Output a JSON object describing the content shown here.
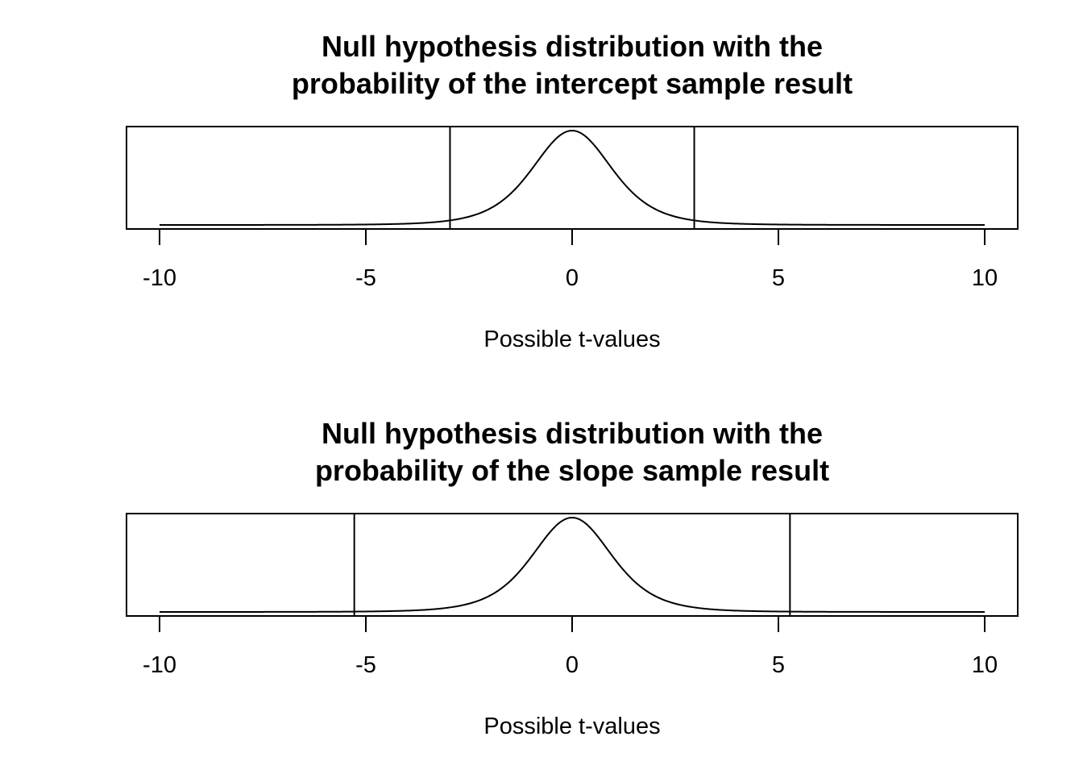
{
  "chart_data": [
    {
      "type": "line",
      "title_line1": "Null hypothesis distribution with the",
      "title_line2": "probability of the intercept sample result",
      "xlabel": "Possible t-values",
      "ylabel": "",
      "xlim": [
        -10,
        10
      ],
      "xticks": [
        -10,
        -5,
        0,
        5,
        10
      ],
      "xtick_labels": [
        "-10",
        "-5",
        "0",
        "5",
        "10"
      ],
      "y_axis_shown": false,
      "grid": false,
      "curve": "t-distribution density (df≈5)",
      "series": [
        {
          "x": [
            -10,
            -8,
            -6,
            -4,
            -3,
            -2.5,
            -2,
            -1.5,
            -1,
            -0.5,
            0,
            0.5,
            1,
            1.5,
            2,
            2.5,
            3,
            4,
            6,
            8,
            10
          ],
          "y": [
            0.0004,
            0.0009,
            0.0018,
            0.0051,
            0.0173,
            0.0302,
            0.0651,
            0.1245,
            0.2197,
            0.3279,
            0.3796,
            0.3279,
            0.2197,
            0.1245,
            0.0651,
            0.0302,
            0.0173,
            0.0051,
            0.0018,
            0.0009,
            0.0004
          ]
        }
      ],
      "vertical_lines": [
        -2.96,
        2.96
      ]
    },
    {
      "type": "line",
      "title_line1": "Null hypothesis distribution with the",
      "title_line2": "probability of the slope sample result",
      "xlabel": "Possible t-values",
      "ylabel": "",
      "xlim": [
        -10,
        10
      ],
      "xticks": [
        -10,
        -5,
        0,
        5,
        10
      ],
      "xtick_labels": [
        "-10",
        "-5",
        "0",
        "5",
        "10"
      ],
      "y_axis_shown": false,
      "grid": false,
      "curve": "t-distribution density (df≈5)",
      "series": [
        {
          "x": [
            -10,
            -8,
            -6,
            -4,
            -3,
            -2.5,
            -2,
            -1.5,
            -1,
            -0.5,
            0,
            0.5,
            1,
            1.5,
            2,
            2.5,
            3,
            4,
            6,
            8,
            10
          ],
          "y": [
            0.0004,
            0.0009,
            0.0018,
            0.0051,
            0.0173,
            0.0302,
            0.0651,
            0.1245,
            0.2197,
            0.3279,
            0.3796,
            0.3279,
            0.2197,
            0.1245,
            0.0651,
            0.0302,
            0.0173,
            0.0051,
            0.0018,
            0.0009,
            0.0004
          ]
        }
      ],
      "vertical_lines": [
        -5.28,
        5.28
      ]
    }
  ]
}
